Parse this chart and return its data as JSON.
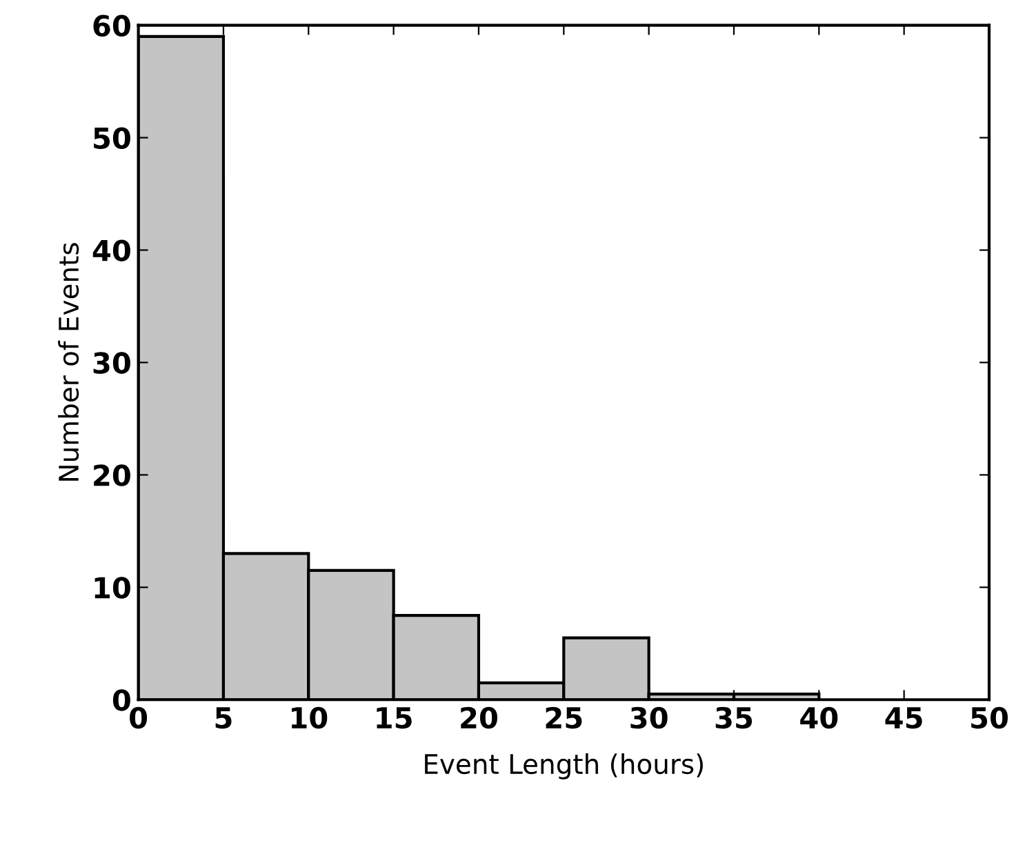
{
  "chart_data": {
    "type": "histogram",
    "xlabel": "Event Length (hours)",
    "ylabel": "Number of Events",
    "bins": [
      0,
      5,
      10,
      15,
      20,
      25,
      30,
      35,
      40
    ],
    "values": [
      59,
      13,
      11.5,
      7.5,
      1.5,
      5.5,
      0.5,
      0.5
    ],
    "color": "#c4c4c4",
    "xlim": [
      0,
      50
    ],
    "ylim": [
      0,
      60
    ],
    "xticks": [
      0,
      5,
      10,
      15,
      20,
      25,
      30,
      35,
      40,
      45,
      50
    ],
    "yticks": [
      0,
      10,
      20,
      30,
      40,
      50,
      60
    ],
    "grid": false
  }
}
